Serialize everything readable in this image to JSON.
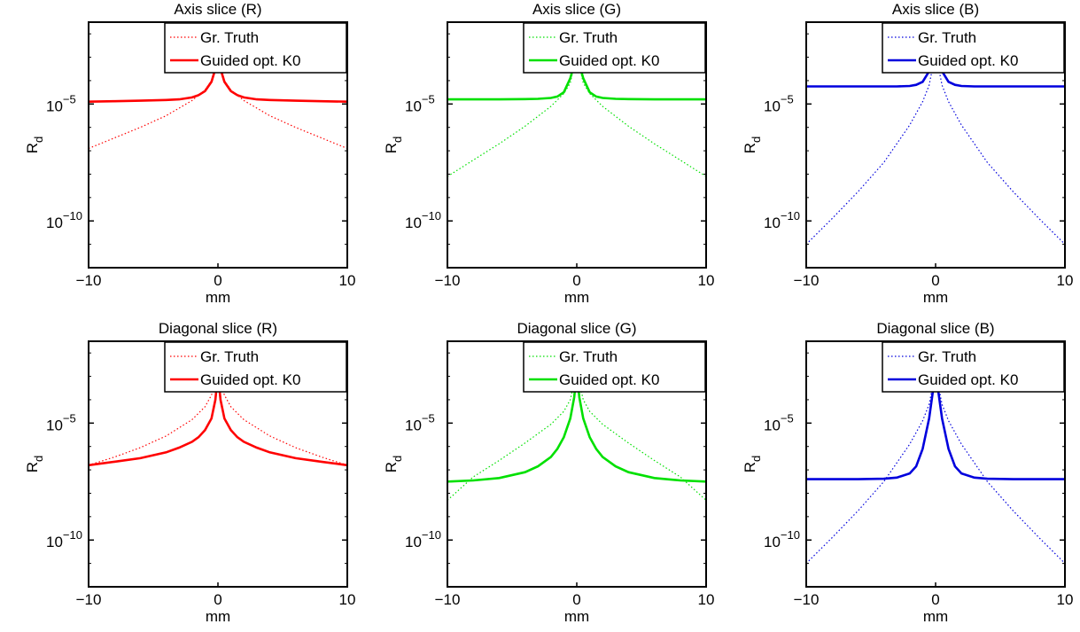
{
  "chart_data": [
    {
      "type": "line",
      "title": "Axis slice (R)",
      "xlabel": "mm",
      "ylabel": "R",
      "ylabel_sub": "d",
      "xlim": [
        -10,
        10
      ],
      "ylim_log10": [
        -12,
        -1.5
      ],
      "yscale": "log",
      "grid": false,
      "legend": "top-right",
      "xticks": [
        "−10",
        "0",
        "10"
      ],
      "yticks": [
        {
          "base": "10",
          "exp": "−5",
          "log": -5
        },
        {
          "base": "10",
          "exp": "−10",
          "log": -10
        }
      ],
      "series": [
        {
          "name": "Gr. Truth",
          "color": "#ff0000",
          "style": "dotted",
          "width": 1.2,
          "x": [
            -10,
            -8,
            -6,
            -4,
            -2,
            -1,
            -0.5,
            0,
            0.5,
            1,
            2,
            4,
            6,
            8,
            10
          ],
          "log10_y": [
            -6.9,
            -6.45,
            -6.0,
            -5.5,
            -4.85,
            -4.4,
            -4.0,
            -2.9,
            -4.0,
            -4.4,
            -4.85,
            -5.5,
            -6.0,
            -6.45,
            -6.9
          ]
        },
        {
          "name": "Guided opt. K0",
          "color": "#ff0000",
          "style": "solid",
          "width": 2.6,
          "x": [
            -10,
            -8,
            -6,
            -4,
            -3,
            -2,
            -1.5,
            -1,
            -0.5,
            -0.2,
            0,
            0.2,
            0.5,
            1,
            1.5,
            2,
            3,
            4,
            6,
            8,
            10
          ],
          "log10_y": [
            -4.9,
            -4.88,
            -4.86,
            -4.83,
            -4.8,
            -4.72,
            -4.62,
            -4.45,
            -4.05,
            -3.5,
            -2.9,
            -3.5,
            -4.05,
            -4.45,
            -4.62,
            -4.72,
            -4.8,
            -4.83,
            -4.86,
            -4.88,
            -4.9
          ]
        }
      ]
    },
    {
      "type": "line",
      "title": "Axis slice (G)",
      "xlabel": "mm",
      "ylabel": "R",
      "ylabel_sub": "d",
      "xlim": [
        -10,
        10
      ],
      "ylim_log10": [
        -12,
        -1.5
      ],
      "yscale": "log",
      "grid": false,
      "legend": "top-right",
      "xticks": [
        "−10",
        "0",
        "10"
      ],
      "yticks": [
        {
          "base": "10",
          "exp": "−5",
          "log": -5
        },
        {
          "base": "10",
          "exp": "−10",
          "log": -10
        }
      ],
      "series": [
        {
          "name": "Gr. Truth",
          "color": "#00e000",
          "style": "dotted",
          "width": 1.2,
          "x": [
            -10,
            -8,
            -6,
            -4,
            -2,
            -1,
            -0.5,
            0,
            0.5,
            1,
            2,
            4,
            6,
            8,
            10
          ],
          "log10_y": [
            -8.1,
            -7.4,
            -6.7,
            -5.95,
            -5.1,
            -4.55,
            -4.1,
            -2.8,
            -4.1,
            -4.55,
            -5.1,
            -5.95,
            -6.7,
            -7.4,
            -8.1
          ]
        },
        {
          "name": "Guided opt. K0",
          "color": "#00e000",
          "style": "solid",
          "width": 2.6,
          "x": [
            -10,
            -8,
            -6,
            -4,
            -3,
            -2,
            -1.5,
            -1,
            -0.5,
            -0.2,
            0,
            0.2,
            0.5,
            1,
            1.5,
            2,
            3,
            4,
            6,
            8,
            10
          ],
          "log10_y": [
            -4.8,
            -4.8,
            -4.8,
            -4.79,
            -4.78,
            -4.74,
            -4.68,
            -4.5,
            -3.9,
            -3.3,
            -2.8,
            -3.3,
            -3.9,
            -4.5,
            -4.68,
            -4.74,
            -4.78,
            -4.79,
            -4.8,
            -4.8,
            -4.8
          ]
        }
      ]
    },
    {
      "type": "line",
      "title": "Axis slice (B)",
      "xlabel": "mm",
      "ylabel": "R",
      "ylabel_sub": "d",
      "xlim": [
        -10,
        10
      ],
      "ylim_log10": [
        -12,
        -1.5
      ],
      "yscale": "log",
      "grid": false,
      "legend": "top-right",
      "xticks": [
        "−10",
        "0",
        "10"
      ],
      "yticks": [
        {
          "base": "10",
          "exp": "−5",
          "log": -5
        },
        {
          "base": "10",
          "exp": "−10",
          "log": -10
        }
      ],
      "series": [
        {
          "name": "Gr. Truth",
          "color": "#0000dd",
          "style": "dotted",
          "width": 1.2,
          "x": [
            -10,
            -8,
            -6,
            -4,
            -2,
            -1,
            -0.5,
            0,
            0.5,
            1,
            2,
            4,
            6,
            8,
            10
          ],
          "log10_y": [
            -11.0,
            -9.9,
            -8.75,
            -7.5,
            -5.9,
            -4.9,
            -4.2,
            -2.8,
            -4.2,
            -4.9,
            -5.9,
            -7.5,
            -8.75,
            -9.9,
            -11.0
          ]
        },
        {
          "name": "Guided opt. K0",
          "color": "#0000dd",
          "style": "solid",
          "width": 2.6,
          "x": [
            -10,
            -8,
            -6,
            -4,
            -3,
            -2,
            -1.5,
            -1,
            -0.5,
            -0.2,
            0,
            0.2,
            0.5,
            1,
            1.5,
            2,
            3,
            4,
            6,
            8,
            10
          ],
          "log10_y": [
            -4.25,
            -4.25,
            -4.25,
            -4.25,
            -4.25,
            -4.23,
            -4.18,
            -4.05,
            -3.6,
            -3.1,
            -2.8,
            -3.1,
            -3.6,
            -4.05,
            -4.18,
            -4.23,
            -4.25,
            -4.25,
            -4.25,
            -4.25,
            -4.25
          ]
        }
      ]
    },
    {
      "type": "line",
      "title": "Diagonal slice (R)",
      "xlabel": "mm",
      "ylabel": "R",
      "ylabel_sub": "d",
      "xlim": [
        -10,
        10
      ],
      "ylim_log10": [
        -12,
        -1.5
      ],
      "yscale": "log",
      "grid": false,
      "legend": "top-right",
      "xticks": [
        "−10",
        "0",
        "10"
      ],
      "yticks": [
        {
          "base": "10",
          "exp": "−5",
          "log": -5
        },
        {
          "base": "10",
          "exp": "−10",
          "log": -10
        }
      ],
      "series": [
        {
          "name": "Gr. Truth",
          "color": "#ff0000",
          "style": "dotted",
          "width": 1.2,
          "x": [
            -10,
            -8,
            -6,
            -4,
            -2,
            -1,
            -0.5,
            0,
            0.5,
            1,
            2,
            4,
            6,
            8,
            10
          ],
          "log10_y": [
            -6.8,
            -6.45,
            -6.05,
            -5.55,
            -4.85,
            -4.3,
            -3.8,
            -2.9,
            -3.8,
            -4.3,
            -4.85,
            -5.55,
            -6.05,
            -6.45,
            -6.8
          ]
        },
        {
          "name": "Guided opt. K0",
          "color": "#ff0000",
          "style": "solid",
          "width": 2.6,
          "x": [
            -10,
            -8,
            -6,
            -4,
            -3,
            -2,
            -1.5,
            -1,
            -0.5,
            -0.2,
            0,
            0.2,
            0.5,
            1,
            1.5,
            2,
            3,
            4,
            6,
            8,
            10
          ],
          "log10_y": [
            -6.8,
            -6.65,
            -6.5,
            -6.25,
            -6.05,
            -5.8,
            -5.6,
            -5.3,
            -4.8,
            -4.0,
            -2.9,
            -4.0,
            -4.8,
            -5.3,
            -5.6,
            -5.8,
            -6.05,
            -6.25,
            -6.5,
            -6.65,
            -6.8
          ]
        }
      ]
    },
    {
      "type": "line",
      "title": "Diagonal slice (G)",
      "xlabel": "mm",
      "ylabel": "R",
      "ylabel_sub": "d",
      "xlim": [
        -10,
        10
      ],
      "ylim_log10": [
        -12,
        -1.5
      ],
      "yscale": "log",
      "grid": false,
      "legend": "top-right",
      "xticks": [
        "−10",
        "0",
        "10"
      ],
      "yticks": [
        {
          "base": "10",
          "exp": "−5",
          "log": -5
        },
        {
          "base": "10",
          "exp": "−10",
          "log": -10
        }
      ],
      "series": [
        {
          "name": "Gr. Truth",
          "color": "#00e000",
          "style": "dotted",
          "width": 1.2,
          "x": [
            -10,
            -8,
            -6,
            -4,
            -2,
            -1,
            -0.5,
            0,
            0.5,
            1,
            2,
            4,
            6,
            8,
            10
          ],
          "log10_y": [
            -8.3,
            -7.3,
            -6.6,
            -5.85,
            -5.05,
            -4.5,
            -4.0,
            -2.8,
            -4.0,
            -4.5,
            -5.05,
            -5.85,
            -6.6,
            -7.3,
            -8.3
          ]
        },
        {
          "name": "Guided opt. K0",
          "color": "#00e000",
          "style": "solid",
          "width": 2.6,
          "x": [
            -10,
            -8,
            -6,
            -4,
            -3,
            -2,
            -1.5,
            -1,
            -0.5,
            -0.2,
            0,
            0.2,
            0.5,
            1,
            1.5,
            2,
            3,
            4,
            6,
            8,
            10
          ],
          "log10_y": [
            -7.5,
            -7.45,
            -7.35,
            -7.1,
            -6.85,
            -6.45,
            -6.1,
            -5.6,
            -4.8,
            -3.9,
            -2.8,
            -3.9,
            -4.8,
            -5.6,
            -6.1,
            -6.45,
            -6.85,
            -7.1,
            -7.35,
            -7.45,
            -7.5
          ]
        }
      ]
    },
    {
      "type": "line",
      "title": "Diagonal slice (B)",
      "xlabel": "mm",
      "ylabel": "R",
      "ylabel_sub": "d",
      "xlim": [
        -10,
        10
      ],
      "ylim_log10": [
        -12,
        -1.5
      ],
      "yscale": "log",
      "grid": false,
      "legend": "top-right",
      "xticks": [
        "−10",
        "0",
        "10"
      ],
      "yticks": [
        {
          "base": "10",
          "exp": "−5",
          "log": -5
        },
        {
          "base": "10",
          "exp": "−10",
          "log": -10
        }
      ],
      "series": [
        {
          "name": "Gr. Truth",
          "color": "#0000dd",
          "style": "dotted",
          "width": 1.2,
          "x": [
            -10,
            -8,
            -6,
            -4,
            -2,
            -1,
            -0.5,
            0,
            0.5,
            1,
            2,
            4,
            6,
            8,
            10
          ],
          "log10_y": [
            -11.0,
            -9.9,
            -8.75,
            -7.5,
            -5.9,
            -4.9,
            -4.2,
            -2.8,
            -4.2,
            -4.9,
            -5.9,
            -7.5,
            -8.75,
            -9.9,
            -11.0
          ]
        },
        {
          "name": "Guided opt. K0",
          "color": "#0000dd",
          "style": "solid",
          "width": 2.6,
          "x": [
            -10,
            -8,
            -6,
            -4,
            -3,
            -2,
            -1.5,
            -1,
            -0.5,
            -0.2,
            0,
            0.2,
            0.5,
            1,
            1.5,
            2,
            3,
            4,
            6,
            8,
            10
          ],
          "log10_y": [
            -7.4,
            -7.4,
            -7.4,
            -7.38,
            -7.33,
            -7.15,
            -6.85,
            -6.1,
            -4.8,
            -3.6,
            -2.8,
            -3.6,
            -4.8,
            -6.1,
            -6.85,
            -7.15,
            -7.33,
            -7.38,
            -7.4,
            -7.4,
            -7.4
          ]
        }
      ]
    }
  ]
}
